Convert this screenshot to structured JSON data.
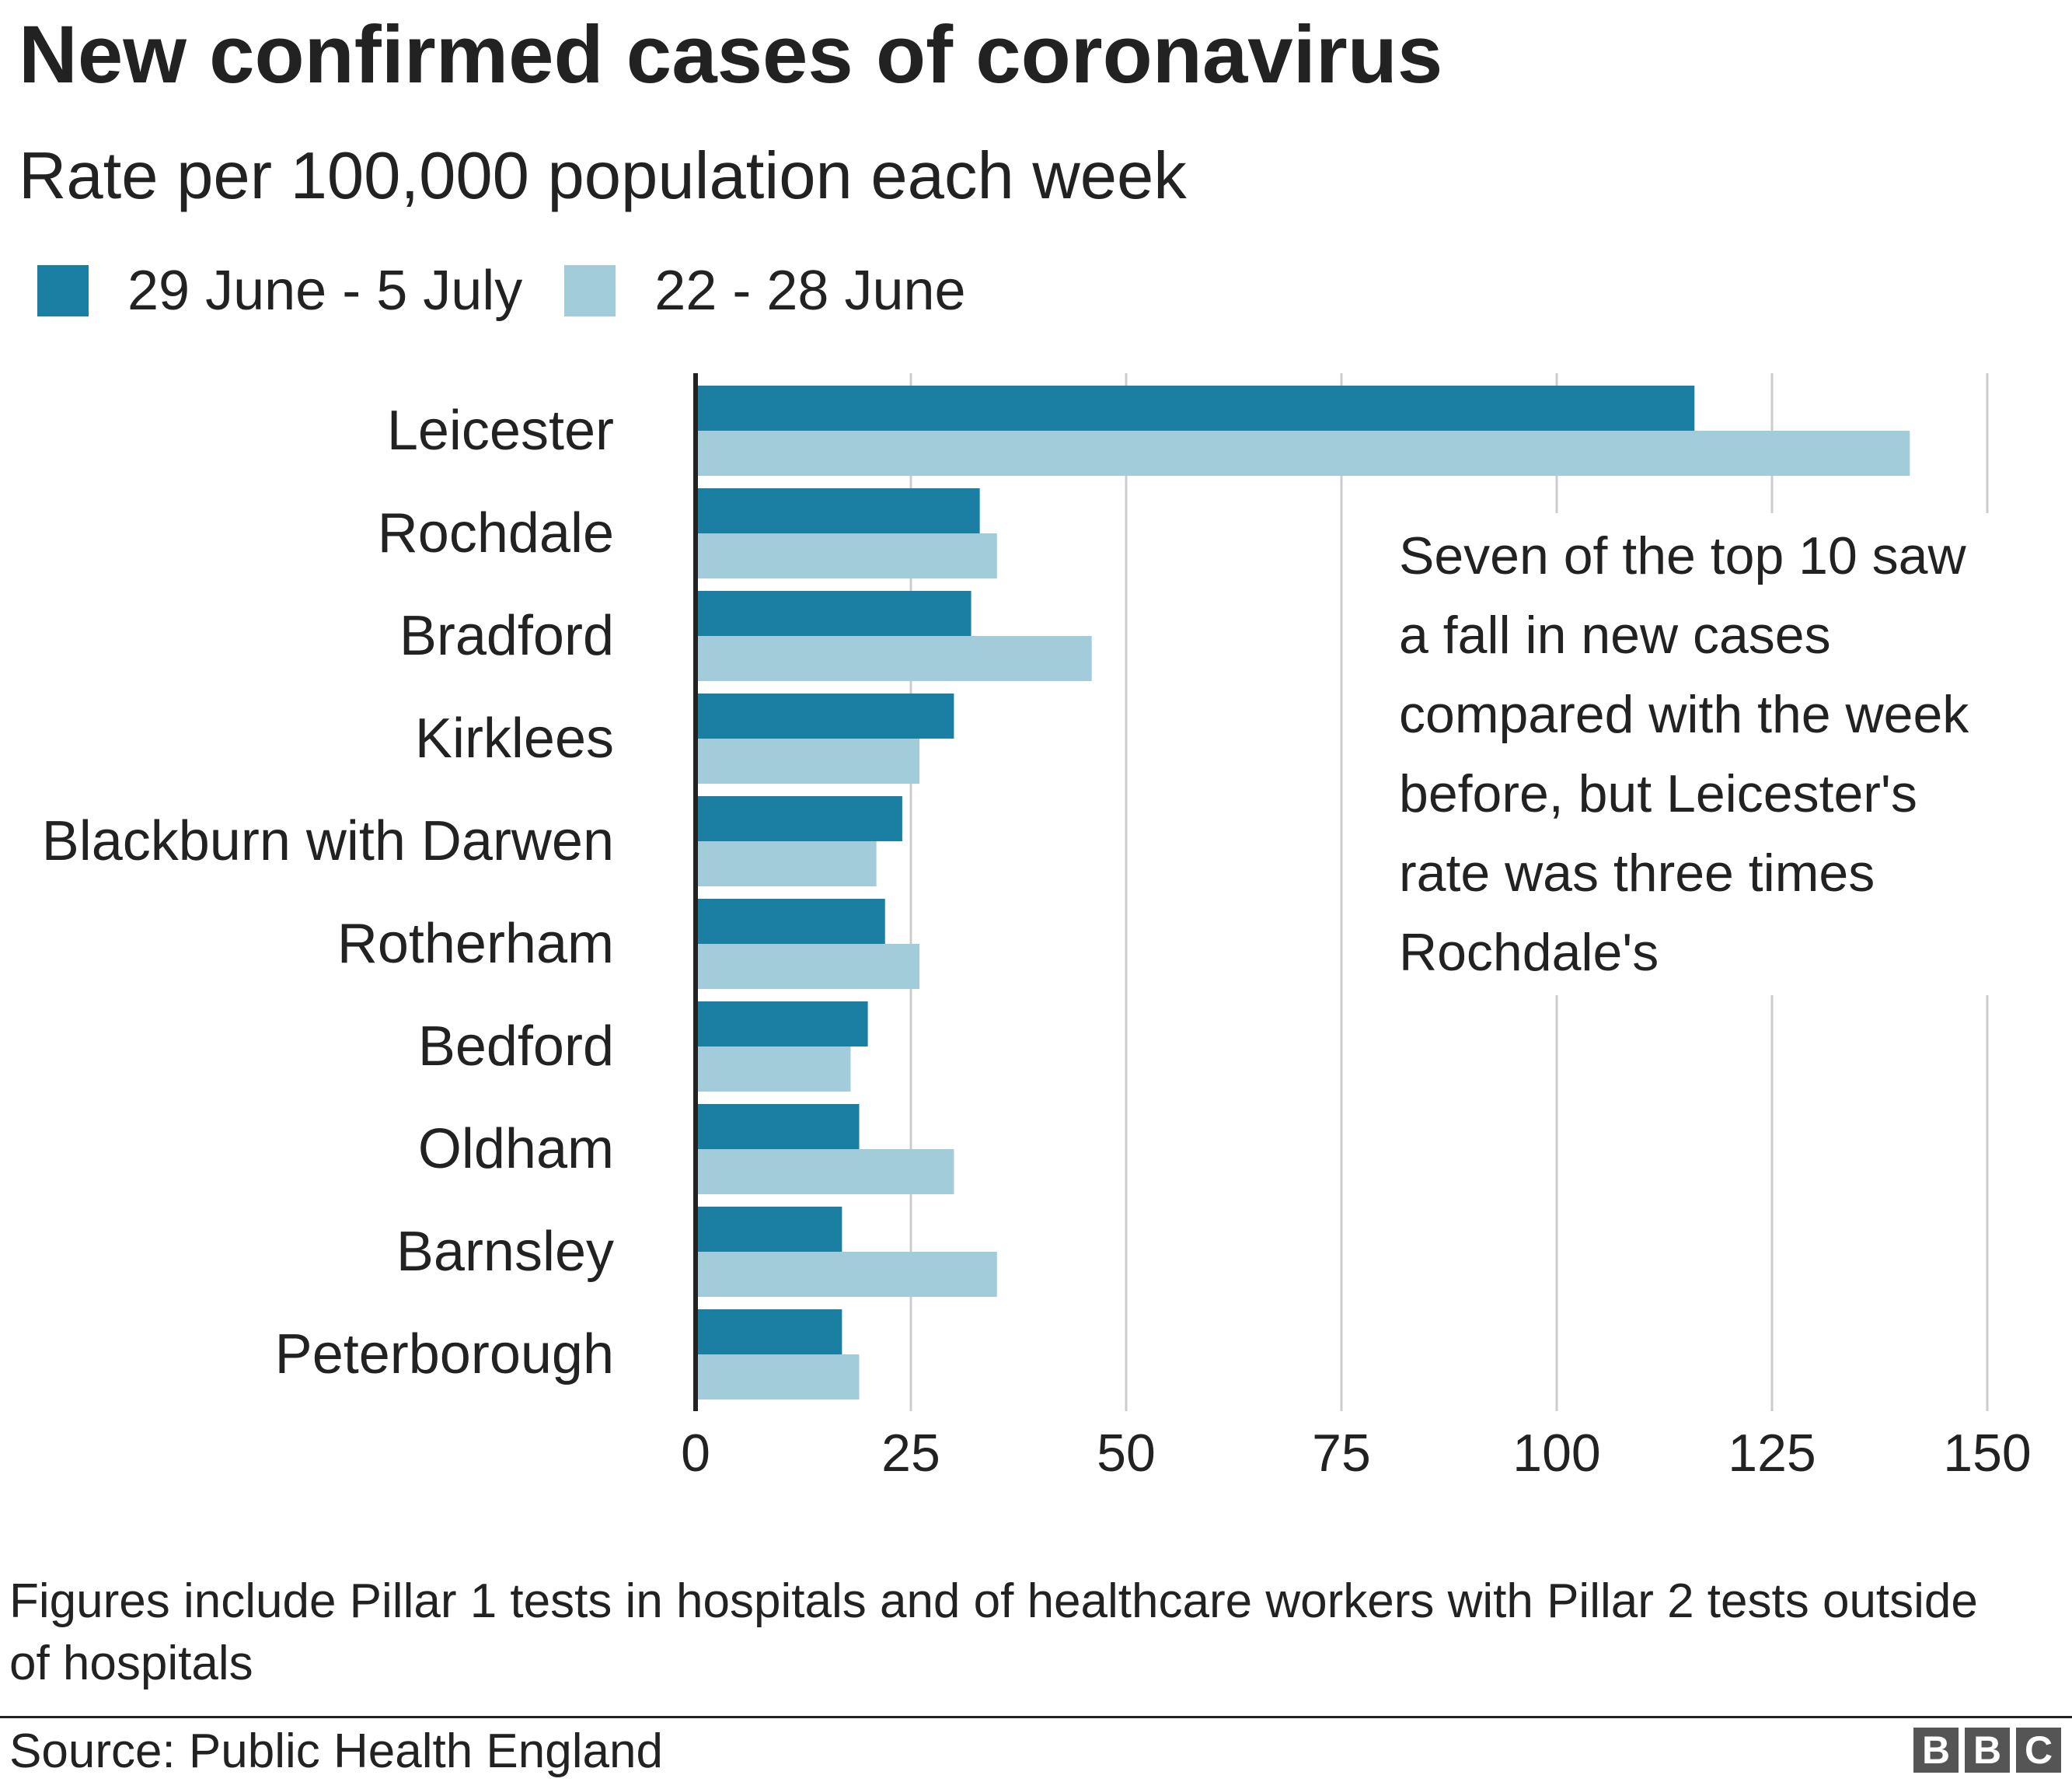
{
  "title": "New confirmed cases of coronavirus",
  "subtitle": "Rate per 100,000 population each week",
  "annotation": "Seven of the top 10 saw a fall in new cases compared with the week before, but Leicester's rate was three times Rochdale's",
  "footnote": "Figures include Pillar 1 tests in hospitals and of healthcare workers with Pillar 2 tests outside of hospitals",
  "source": "Source: Public Health England",
  "logo": {
    "letters": [
      "B",
      "B",
      "C"
    ]
  },
  "colors": {
    "series_1": "#1a7fa3",
    "series_2": "#a3ccdb",
    "grid": "#cccccc",
    "axis": "#222222",
    "text": "#222222"
  },
  "chart_data": {
    "type": "bar",
    "orientation": "horizontal",
    "categories": [
      "Leicester",
      "Rochdale",
      "Bradford",
      "Kirklees",
      "Blackburn with Darwen",
      "Rotherham",
      "Bedford",
      "Oldham",
      "Barnsley",
      "Peterborough"
    ],
    "series": [
      {
        "name": "29 June - 5 July",
        "color": "#1a7fa3",
        "values": [
          116,
          33,
          32,
          30,
          24,
          22,
          20,
          19,
          17,
          17
        ]
      },
      {
        "name": "22 - 28 June",
        "color": "#a3ccdb",
        "values": [
          141,
          35,
          46,
          26,
          21,
          26,
          18,
          30,
          35,
          19
        ]
      }
    ],
    "xlim": [
      0,
      150
    ],
    "xticks": [
      0,
      25,
      50,
      75,
      100,
      125,
      150
    ],
    "grid": true,
    "legend_position": "top-left"
  }
}
